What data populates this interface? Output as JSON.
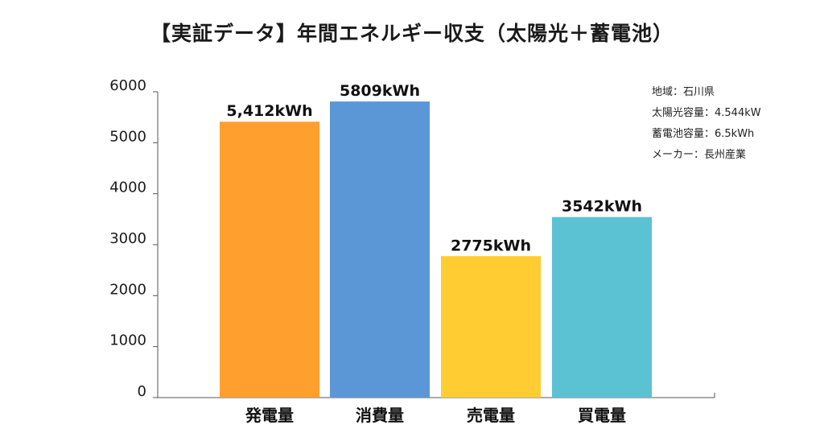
{
  "chart_data": {
    "type": "bar",
    "title": "【実証データ】年間エネルギー収支（太陽光＋蓄電池）",
    "categories": [
      "発電量",
      "消費量",
      "売電量",
      "買電量"
    ],
    "values": [
      5412,
      5809,
      2775,
      3542
    ],
    "data_labels": [
      "5,412kWh",
      "5809kWh",
      "2775kWh",
      "3542kWh"
    ],
    "colors": [
      "#ff9f2e",
      "#5b97d6",
      "#ffcd31",
      "#5bc2d3"
    ],
    "ylim": [
      0,
      6000
    ],
    "yticks": [
      0,
      1000,
      2000,
      3000,
      4000,
      5000,
      6000
    ],
    "xlabel": "",
    "ylabel": "",
    "grid": false
  },
  "info": {
    "lines": [
      "地域：石川県",
      "太陽光容量：4.544kW",
      "蓄電池容量：6.5kWh",
      "メーカー：長州産業"
    ]
  }
}
